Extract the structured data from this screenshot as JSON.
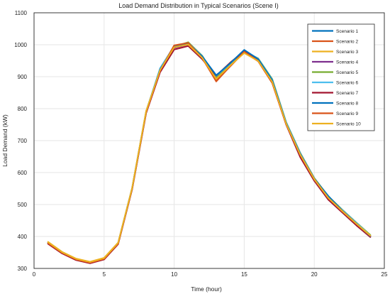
{
  "chart_data": {
    "type": "line",
    "title": "Load Demand Distribution in Typical Scenarios (Scene I)",
    "xlabel": "Time (hour)",
    "ylabel": "Load Demand (kW)",
    "xlim": [
      0,
      25
    ],
    "ylim": [
      300,
      1100
    ],
    "xticks": [
      0,
      5,
      10,
      15,
      20,
      25
    ],
    "yticks": [
      300,
      400,
      500,
      600,
      700,
      800,
      900,
      1000,
      1100
    ],
    "grid": true,
    "legend_position": "top-right",
    "x": [
      1,
      2,
      3,
      4,
      5,
      6,
      7,
      8,
      9,
      10,
      11,
      12,
      13,
      14,
      15,
      16,
      17,
      18,
      19,
      20,
      21,
      22,
      23,
      24
    ],
    "series": [
      {
        "name": "Scenario 1",
        "color": "#0072BD",
        "values": [
          380,
          350,
          328,
          318,
          330,
          378,
          550,
          790,
          925,
          992,
          1003,
          963,
          905,
          940,
          982,
          955,
          890,
          755,
          660,
          582,
          525,
          482,
          442,
          402
        ]
      },
      {
        "name": "Scenario 2",
        "color": "#D95319",
        "values": [
          378,
          348,
          327,
          317,
          329,
          377,
          548,
          788,
          918,
          997,
          1004,
          958,
          887,
          932,
          977,
          948,
          880,
          750,
          655,
          579,
          521,
          479,
          439,
          400
        ]
      },
      {
        "name": "Scenario 3",
        "color": "#EDB120",
        "values": [
          383,
          352,
          331,
          321,
          333,
          381,
          552,
          793,
          922,
          993,
          1000,
          960,
          894,
          936,
          975,
          950,
          885,
          753,
          657,
          580,
          522,
          480,
          441,
          404
        ]
      },
      {
        "name": "Scenario 4",
        "color": "#7E2F8E",
        "values": [
          379,
          349,
          327,
          318,
          330,
          378,
          549,
          789,
          920,
          990,
          1001,
          961,
          900,
          938,
          979,
          952,
          886,
          752,
          653,
          576,
          518,
          477,
          437,
          399
        ]
      },
      {
        "name": "Scenario 5",
        "color": "#77AC30",
        "values": [
          381,
          351,
          329,
          319,
          331,
          379,
          551,
          791,
          924,
          994,
          1008,
          966,
          896,
          940,
          980,
          957,
          893,
          757,
          662,
          583,
          526,
          484,
          444,
          405
        ]
      },
      {
        "name": "Scenario 6",
        "color": "#4DBEEE",
        "values": [
          380,
          350,
          328,
          319,
          331,
          379,
          551,
          791,
          927,
          996,
          1006,
          965,
          902,
          941,
          983,
          956,
          891,
          756,
          661,
          582,
          524,
          483,
          443,
          403
        ]
      },
      {
        "name": "Scenario 7",
        "color": "#A2142F",
        "values": [
          377,
          347,
          326,
          316,
          328,
          376,
          547,
          786,
          914,
          985,
          996,
          955,
          903,
          944,
          980,
          949,
          882,
          749,
          648,
          574,
          515,
          475,
          435,
          398
        ]
      },
      {
        "name": "Scenario 8",
        "color": "#0072BD",
        "values": [
          380,
          350,
          329,
          319,
          331,
          379,
          550,
          790,
          923,
          993,
          1004,
          964,
          904,
          942,
          984,
          955,
          889,
          754,
          659,
          581,
          527,
          481,
          441,
          401
        ]
      },
      {
        "name": "Scenario 9",
        "color": "#D95319",
        "values": [
          379,
          349,
          328,
          318,
          330,
          378,
          549,
          789,
          919,
          998,
          1006,
          959,
          885,
          933,
          978,
          949,
          881,
          751,
          656,
          580,
          520,
          480,
          440,
          402
        ]
      },
      {
        "name": "Scenario 10",
        "color": "#EDB120",
        "values": [
          382,
          351,
          330,
          320,
          332,
          380,
          551,
          792,
          921,
          992,
          1001,
          959,
          893,
          935,
          974,
          949,
          884,
          752,
          656,
          579,
          521,
          479,
          440,
          403
        ]
      }
    ]
  }
}
